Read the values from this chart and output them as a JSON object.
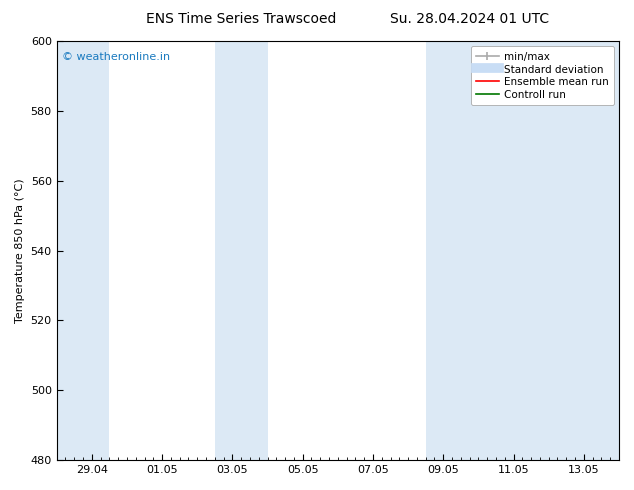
{
  "title_left": "ENS Time Series Trawscoed",
  "title_right": "Su. 28.04.2024 01 UTC",
  "ylabel": "Temperature 850 hPa (°C)",
  "ylim": [
    480,
    600
  ],
  "yticks": [
    480,
    500,
    520,
    540,
    560,
    580,
    600
  ],
  "xtick_labels": [
    "29.04",
    "01.05",
    "03.05",
    "05.05",
    "07.05",
    "09.05",
    "11.05",
    "13.05"
  ],
  "xtick_positions": [
    1,
    3,
    5,
    7,
    9,
    11,
    13,
    15
  ],
  "xlim_start": 0,
  "xlim_end": 16,
  "bg_color": "#ffffff",
  "plot_bg_color": "#ffffff",
  "shaded_band_color": "#dce9f5",
  "shaded_bands": [
    {
      "x_start": 0.0,
      "x_end": 1.5
    },
    {
      "x_start": 4.5,
      "x_end": 6.0
    },
    {
      "x_start": 10.5,
      "x_end": 16.0
    }
  ],
  "watermark_text": "© weatheronline.in",
  "watermark_color": "#1a7abf",
  "legend_items": [
    {
      "label": "min/max",
      "color": "#aaaaaa",
      "lw": 1.2,
      "ls": "-",
      "marker": true
    },
    {
      "label": "Standard deviation",
      "color": "#c8ddf5",
      "lw": 7,
      "ls": "-",
      "marker": false
    },
    {
      "label": "Ensemble mean run",
      "color": "#ff0000",
      "lw": 1.2,
      "ls": "-",
      "marker": false
    },
    {
      "label": "Controll run",
      "color": "#007700",
      "lw": 1.2,
      "ls": "-",
      "marker": false
    }
  ],
  "title_fontsize": 10,
  "tick_fontsize": 8,
  "ylabel_fontsize": 8,
  "legend_fontsize": 7.5
}
